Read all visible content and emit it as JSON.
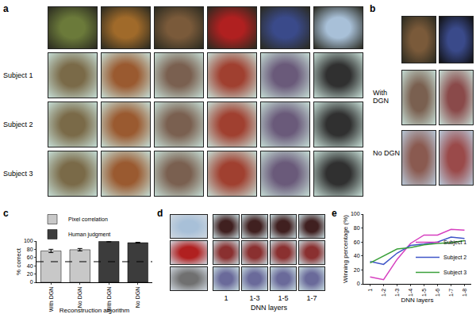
{
  "panel_labels": [
    "a",
    "b",
    "c",
    "d",
    "e"
  ],
  "panels": {
    "a": {
      "rows": [
        "Subject 1",
        "Subject 2",
        "Subject 3"
      ]
    },
    "b": {
      "rows": [
        "With DGN",
        "No DGN"
      ]
    },
    "d": {
      "columns": [
        "1",
        "1-3",
        "1-5",
        "1-7"
      ],
      "axis_label": "DNN layers"
    }
  },
  "chart_data": [
    {
      "type": "bar",
      "categories": [
        "With DGN",
        "No DGN",
        "With DGN",
        "No DGN"
      ],
      "x_label": "Reconstruction algorithm",
      "y_label": "% correct",
      "series": [
        {
          "name": "Pixel correlation",
          "color": "#c8c8c8",
          "values": [
            76,
            79,
            null,
            null
          ],
          "errors": [
            4,
            3,
            null,
            null
          ]
        },
        {
          "name": "Human judgment",
          "color": "#3c3c3c",
          "values": [
            null,
            null,
            99,
            96
          ],
          "errors": [
            null,
            null,
            1,
            1
          ]
        }
      ],
      "ylim": [
        0,
        100
      ],
      "yticks": [
        0,
        20,
        40,
        60,
        80,
        100
      ],
      "chance": 50,
      "legend": "top left"
    },
    {
      "type": "line",
      "categories": [
        "1",
        "1-2",
        "1-3",
        "1-4",
        "1-5",
        "1-6",
        "1-7",
        "1-8"
      ],
      "x_label": "DNN layers",
      "y_label": "Winning percentage (%)",
      "series": [
        {
          "name": "Subject 1",
          "color": "#d63fbf",
          "values": [
            10,
            6,
            35,
            58,
            70,
            70,
            78,
            77
          ]
        },
        {
          "name": "Subject 2",
          "color": "#3f55c8",
          "values": [
            32,
            28,
            44,
            55,
            57,
            60,
            67,
            65
          ]
        },
        {
          "name": "Subject 3",
          "color": "#3aa03a",
          "values": [
            30,
            40,
            50,
            52,
            56,
            58,
            59,
            62
          ]
        }
      ],
      "ylim": [
        0,
        100
      ],
      "yticks": [
        0,
        20,
        40,
        60,
        80,
        100
      ],
      "legend": "bottom right"
    }
  ]
}
